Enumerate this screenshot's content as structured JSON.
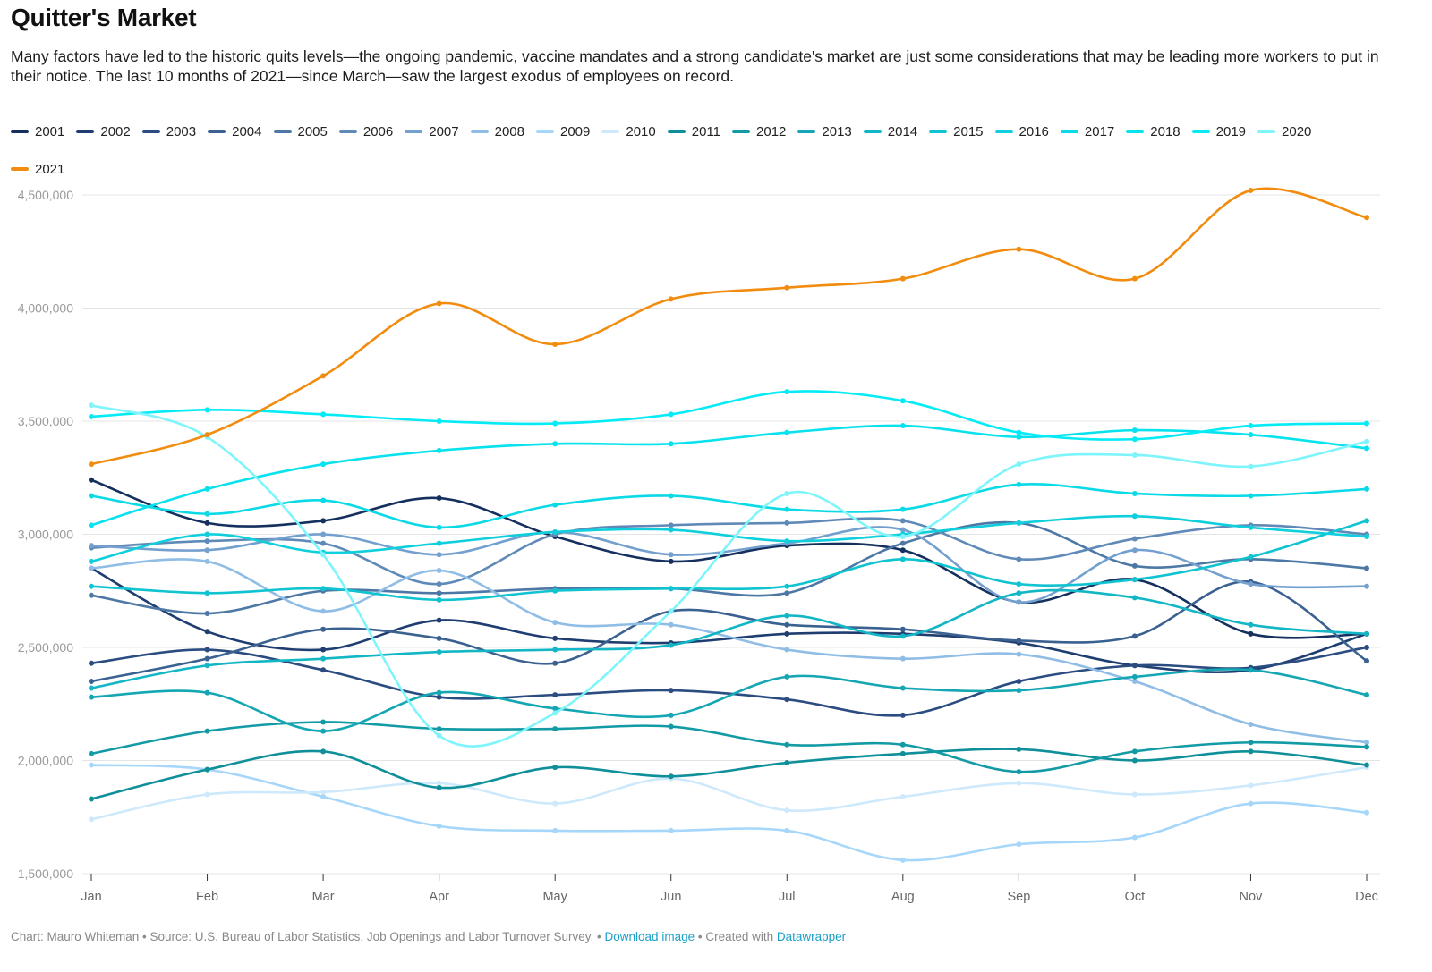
{
  "header": {
    "title": "Quitter's Market",
    "description": "Many factors have led to the historic quits levels—the ongoing pandemic, vaccine mandates and a strong candidate's market are just some considerations that may be leading more workers to put in their notice. The last 10 months of 2021—since March—saw the largest exodus of employees on record."
  },
  "footer": {
    "credit": "Chart: Mauro Whiteman • Source: U.S. Bureau of Labor Statistics, Job Openings and Labor Turnover Survey. • ",
    "download_label": "Download image",
    "created_with": " • Created with ",
    "datawrapper_label": "Datawrapper"
  },
  "chart_data": {
    "type": "line",
    "title": "Quitter's Market",
    "xlabel": "",
    "ylabel": "",
    "categories": [
      "Jan",
      "Feb",
      "Mar",
      "Apr",
      "May",
      "Jun",
      "Jul",
      "Aug",
      "Sep",
      "Oct",
      "Nov",
      "Dec"
    ],
    "ylim": [
      1500000,
      4500000
    ],
    "yticks": [
      1500000,
      2000000,
      2500000,
      3000000,
      3500000,
      4000000,
      4500000
    ],
    "ytick_labels": [
      "1,500,000",
      "2,000,000",
      "2,500,000",
      "3,000,000",
      "3,500,000",
      "4,000,000",
      "4,500,000"
    ],
    "grid": true,
    "legend_position": "top",
    "series": [
      {
        "name": "2001",
        "color": "#15305e",
        "values": [
          3240000,
          3050000,
          3060000,
          3160000,
          2990000,
          2880000,
          2950000,
          2930000,
          2700000,
          2800000,
          2560000,
          2560000
        ]
      },
      {
        "name": "2002",
        "color": "#1f3d70",
        "values": [
          2850000,
          2570000,
          2490000,
          2620000,
          2540000,
          2520000,
          2560000,
          2560000,
          2520000,
          2420000,
          2400000,
          2560000
        ]
      },
      {
        "name": "2003",
        "color": "#2a4c80",
        "values": [
          2430000,
          2490000,
          2400000,
          2280000,
          2290000,
          2310000,
          2270000,
          2200000,
          2350000,
          2420000,
          2410000,
          2500000
        ]
      },
      {
        "name": "2004",
        "color": "#3a6190",
        "values": [
          2350000,
          2450000,
          2580000,
          2540000,
          2430000,
          2660000,
          2600000,
          2580000,
          2530000,
          2550000,
          2790000,
          2440000
        ]
      },
      {
        "name": "2005",
        "color": "#4d78a5",
        "values": [
          2730000,
          2650000,
          2750000,
          2740000,
          2760000,
          2760000,
          2740000,
          2960000,
          3050000,
          2860000,
          2890000,
          2850000
        ]
      },
      {
        "name": "2006",
        "color": "#5f8ab8",
        "values": [
          2940000,
          2970000,
          2960000,
          2780000,
          3000000,
          3040000,
          3050000,
          3060000,
          2890000,
          2980000,
          3040000,
          3000000
        ]
      },
      {
        "name": "2007",
        "color": "#74a0cf",
        "values": [
          2950000,
          2930000,
          3000000,
          2910000,
          3010000,
          2910000,
          2960000,
          3020000,
          2700000,
          2930000,
          2780000,
          2770000
        ]
      },
      {
        "name": "2008",
        "color": "#8fbde6",
        "values": [
          2850000,
          2880000,
          2660000,
          2840000,
          2610000,
          2600000,
          2490000,
          2450000,
          2470000,
          2350000,
          2160000,
          2080000
        ]
      },
      {
        "name": "2009",
        "color": "#a6d7fa",
        "values": [
          1980000,
          1960000,
          1840000,
          1710000,
          1690000,
          1690000,
          1690000,
          1560000,
          1630000,
          1660000,
          1810000,
          1770000
        ]
      },
      {
        "name": "2010",
        "color": "#cde9fb",
        "values": [
          1740000,
          1850000,
          1860000,
          1900000,
          1810000,
          1920000,
          1780000,
          1840000,
          1900000,
          1850000,
          1890000,
          1970000
        ]
      },
      {
        "name": "2011",
        "color": "#0f8f99",
        "values": [
          1830000,
          1960000,
          2040000,
          1880000,
          1970000,
          1930000,
          1990000,
          2030000,
          2050000,
          2000000,
          2040000,
          1980000
        ]
      },
      {
        "name": "2012",
        "color": "#129aa5",
        "values": [
          2030000,
          2130000,
          2170000,
          2140000,
          2140000,
          2150000,
          2070000,
          2070000,
          1950000,
          2040000,
          2080000,
          2060000
        ]
      },
      {
        "name": "2013",
        "color": "#14a6b2",
        "values": [
          2280000,
          2300000,
          2130000,
          2300000,
          2230000,
          2200000,
          2370000,
          2320000,
          2310000,
          2370000,
          2400000,
          2290000
        ]
      },
      {
        "name": "2014",
        "color": "#12b6c4",
        "values": [
          2320000,
          2420000,
          2450000,
          2480000,
          2490000,
          2510000,
          2640000,
          2550000,
          2740000,
          2720000,
          2600000,
          2560000
        ]
      },
      {
        "name": "2015",
        "color": "#10c3d0",
        "values": [
          2770000,
          2740000,
          2760000,
          2710000,
          2750000,
          2760000,
          2770000,
          2890000,
          2780000,
          2800000,
          2900000,
          3060000
        ]
      },
      {
        "name": "2016",
        "color": "#0fcfdc",
        "values": [
          2880000,
          3000000,
          2920000,
          2960000,
          3010000,
          3020000,
          2970000,
          3000000,
          3050000,
          3080000,
          3030000,
          2990000
        ]
      },
      {
        "name": "2017",
        "color": "#0ad9e6",
        "values": [
          3170000,
          3090000,
          3150000,
          3030000,
          3130000,
          3170000,
          3110000,
          3110000,
          3220000,
          3180000,
          3170000,
          3200000
        ]
      },
      {
        "name": "2018",
        "color": "#07e2ee",
        "values": [
          3040000,
          3200000,
          3310000,
          3370000,
          3400000,
          3400000,
          3450000,
          3480000,
          3430000,
          3460000,
          3440000,
          3380000
        ]
      },
      {
        "name": "2019",
        "color": "#05ebf6",
        "values": [
          3520000,
          3550000,
          3530000,
          3500000,
          3490000,
          3530000,
          3630000,
          3590000,
          3450000,
          3420000,
          3480000,
          3490000
        ]
      },
      {
        "name": "2020",
        "color": "#7ef5fb",
        "values": [
          3570000,
          3430000,
          2910000,
          2110000,
          2210000,
          2660000,
          3180000,
          2990000,
          3310000,
          3350000,
          3300000,
          3410000
        ]
      },
      {
        "name": "2021",
        "color": "#f28c0f",
        "values": [
          3310000,
          3440000,
          3700000,
          4020000,
          3840000,
          4040000,
          4090000,
          4130000,
          4260000,
          4130000,
          4520000,
          4400000
        ]
      }
    ]
  }
}
